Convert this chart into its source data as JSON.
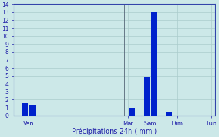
{
  "bar_positions": [
    1,
    2,
    15,
    17,
    18,
    20
  ],
  "bar_heights": [
    1.6,
    1.3,
    1.0,
    4.8,
    13.0,
    0.5
  ],
  "bar_width": 0.8,
  "bar_color": "#0022cc",
  "background_color": "#cce8e8",
  "grid_color": "#aacccc",
  "xlabel": "Précipitations 24h ( mm )",
  "xlabel_color": "#2222aa",
  "tick_color": "#2222aa",
  "ylim": [
    0,
    14
  ],
  "yticks": [
    0,
    1,
    2,
    3,
    4,
    5,
    6,
    7,
    8,
    9,
    10,
    11,
    12,
    13,
    14
  ],
  "xlim": [
    -0.5,
    26
  ],
  "day_labels": [
    "Ven",
    "Mar",
    "Sam",
    "Dim",
    "Lun"
  ],
  "day_tick_positions": [
    1.5,
    14.5,
    17.5,
    21.0,
    25.5
  ],
  "vline_positions": [
    3.5,
    14.0,
    19.5
  ],
  "vline_color": "#556677",
  "spine_color": "#3344aa"
}
